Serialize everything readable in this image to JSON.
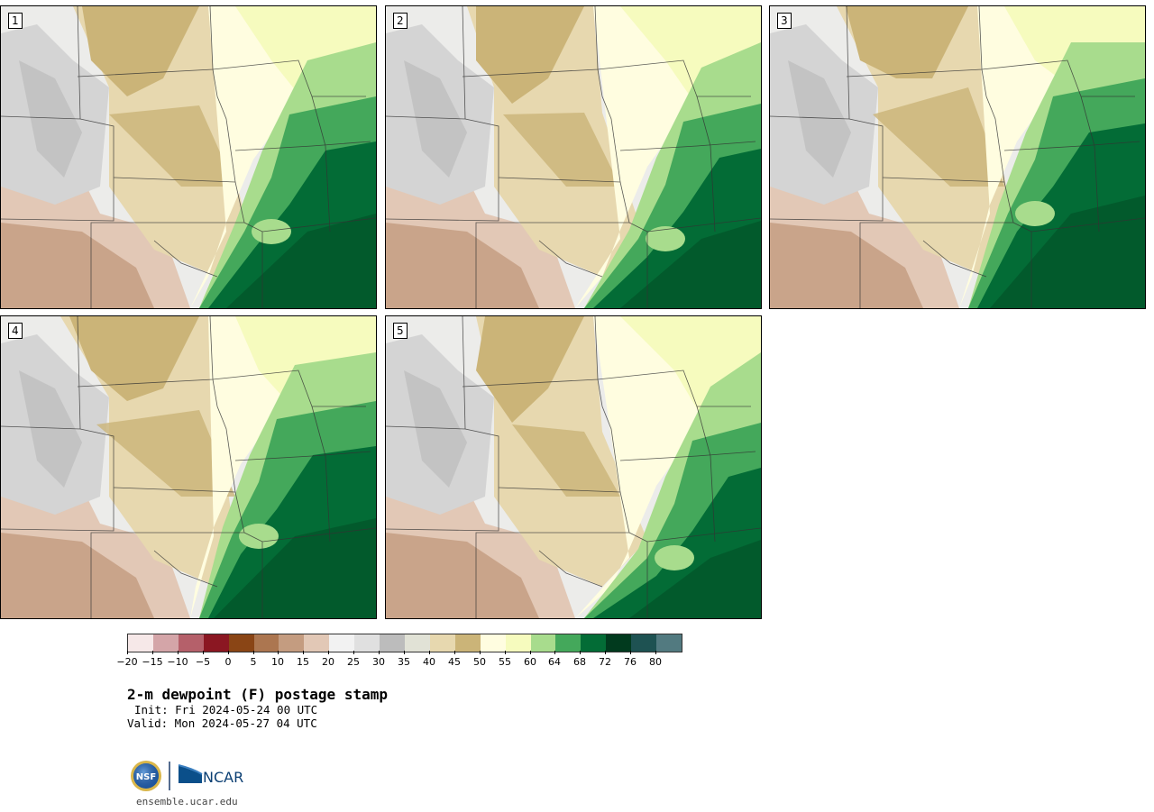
{
  "panels": [
    {
      "label": "1",
      "variant": "dry-west"
    },
    {
      "label": "2",
      "variant": "humid-south"
    },
    {
      "label": "3",
      "variant": "moist-east"
    },
    {
      "label": "4",
      "variant": "front-center"
    },
    {
      "label": "5",
      "variant": "plains-dry"
    }
  ],
  "colorbar": {
    "colors": [
      "#f6e8e8",
      "#d4a5a8",
      "#b5606a",
      "#8b1722",
      "#8a4515",
      "#ac7650",
      "#c49c80",
      "#e2c8b6",
      "#f2f2f2",
      "#e0e0e0",
      "#bcbcbc",
      "#e1e2d6",
      "#e7d8af",
      "#cbb478",
      "#fffde0",
      "#f6fbbe",
      "#a8dc8d",
      "#44a85b",
      "#036c36",
      "#013a1e",
      "#1e5252",
      "#527a80"
    ],
    "tick_labels": [
      "−20",
      "−15",
      "−10",
      "−5",
      "0",
      "5",
      "10",
      "15",
      "20",
      "25",
      "30",
      "35",
      "40",
      "45",
      "50",
      "55",
      "60",
      "64",
      "68",
      "72",
      "76",
      "80"
    ]
  },
  "title": "2-m dewpoint (F) postage stamp",
  "init": "Init: Fri 2024-05-24 00 UTC",
  "valid": "Valid: Mon 2024-05-27 04 UTC",
  "logos": {
    "nsf": "NSF",
    "ncar": "NCAR"
  },
  "site": "ensemble.ucar.edu"
}
